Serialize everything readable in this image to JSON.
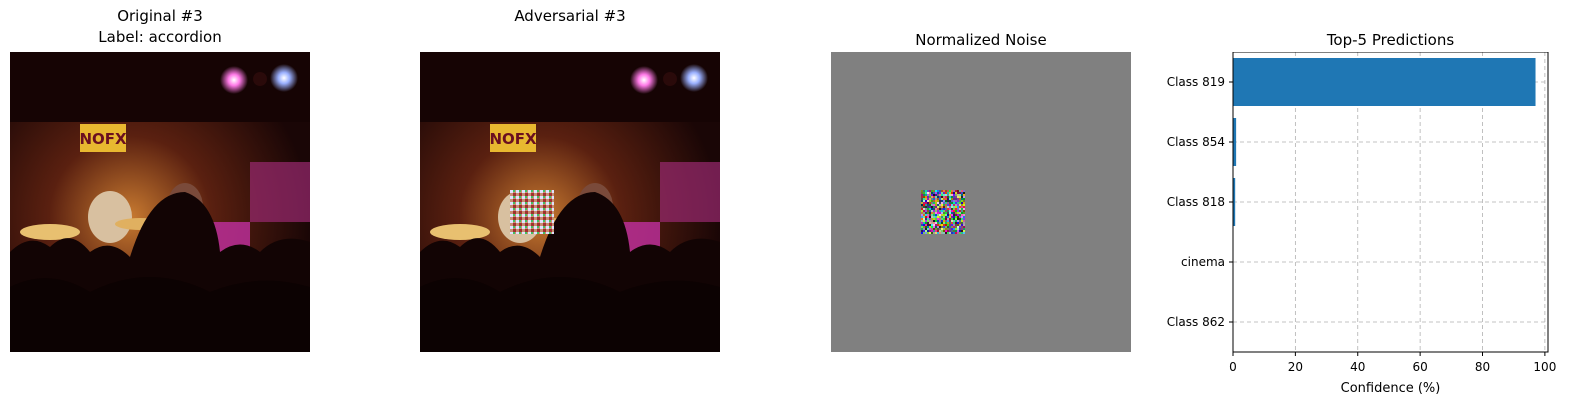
{
  "panels": {
    "original": {
      "title_line1": "Original #3",
      "title_line2": "Label: accordion"
    },
    "adversarial": {
      "title": "Adversarial #3"
    },
    "noise": {
      "title": "Normalized Noise"
    },
    "predictions": {
      "title": "Top-5 Predictions"
    }
  },
  "images": {
    "concert_sign_text": "NOFX",
    "noise_background_color": "#808080"
  },
  "chart_data": {
    "type": "bar",
    "orientation": "horizontal",
    "title": "Top-5 Predictions",
    "xlabel": "Confidence (%)",
    "ylabel": "",
    "categories": [
      "Class 819",
      "Class 854",
      "Class 818",
      "cinema",
      "Class 862"
    ],
    "values": [
      97.0,
      1.0,
      0.7,
      0.05,
      0.03
    ],
    "xlim": [
      0,
      101
    ],
    "xticks": [
      0,
      20,
      40,
      60,
      80,
      100
    ],
    "grid": true,
    "bar_color": "#1f77b4"
  }
}
